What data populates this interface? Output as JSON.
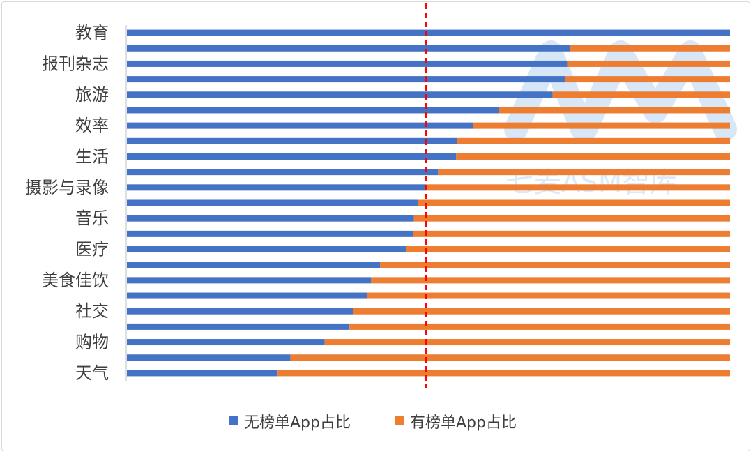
{
  "chart_data": {
    "type": "bar",
    "orientation": "horizontal",
    "stacked": "percent",
    "categories": [
      "教育",
      "",
      "报刊杂志",
      "",
      "旅游",
      "",
      "效率",
      "",
      "生活",
      "",
      "摄影与录像",
      "",
      "音乐",
      "",
      "医疗",
      "",
      "美食佳饮",
      "",
      "社交",
      "",
      "购物",
      "",
      "天气"
    ],
    "series": [
      {
        "name": "无榜单App占比",
        "color": "#4472c4",
        "values": [
          100,
          73.5,
          73,
          72.6,
          70.6,
          61.7,
          57.4,
          54.8,
          54.6,
          51.6,
          49.6,
          48.3,
          47.6,
          47.4,
          46.3,
          42,
          40.5,
          39.8,
          37.5,
          36.9,
          32.8,
          27.1,
          25
        ]
      },
      {
        "name": "有榜单App占比",
        "color": "#ed7d31",
        "values": [
          0,
          26.5,
          27,
          27.4,
          29.4,
          38.3,
          42.6,
          45.2,
          45.4,
          48.4,
          50.4,
          51.7,
          52.4,
          52.6,
          53.7,
          58,
          59.5,
          60.2,
          62.5,
          63.1,
          67.2,
          72.9,
          75
        ]
      }
    ],
    "xlim": [
      0,
      100
    ],
    "reference_line": {
      "value": 49.6,
      "style": "dashed",
      "color": "#ff0000"
    },
    "legend": "bottom",
    "grid": false
  },
  "watermark": {
    "text": "七麦ASM智库",
    "color": "#9cc3ee"
  }
}
